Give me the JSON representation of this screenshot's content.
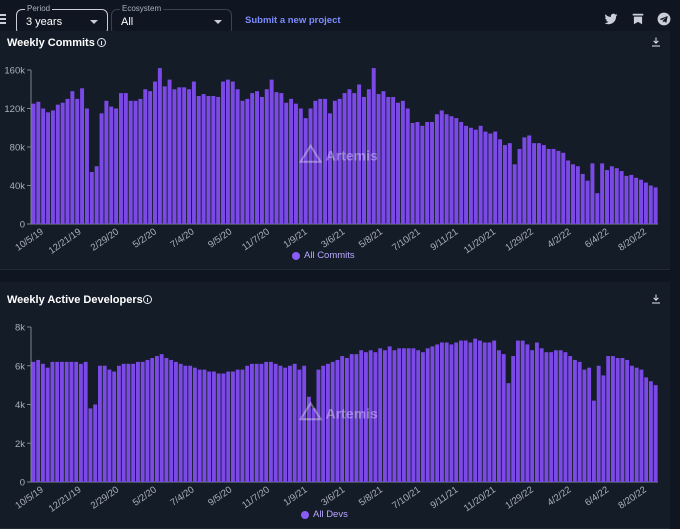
{
  "controls": {
    "period": {
      "legend": "Period",
      "value": "3 years"
    },
    "ecosystem": {
      "legend": "Ecosystem",
      "value": "All"
    },
    "submit_label": "Submit a new project"
  },
  "icons": [
    "menu-icon",
    "twitter-icon",
    "bookmarks-icon",
    "telegram-icon",
    "download-icon",
    "info-icon"
  ],
  "watermark": "Artemis",
  "colors": {
    "bar": "#7b4ae6",
    "legend_text": "#b9a8ff",
    "background": "#141c27"
  },
  "chart_data": [
    {
      "type": "bar",
      "title": "Weekly Commits",
      "legend": "All Commits",
      "x_ticks": [
        "10/5/19",
        "12/21/19",
        "2/29/20",
        "5/2/20",
        "7/4/20",
        "9/5/20",
        "11/7/20",
        "1/9/21",
        "3/6/21",
        "5/8/21",
        "7/10/21",
        "9/11/21",
        "11/20/21",
        "1/29/22",
        "4/2/22",
        "6/4/22",
        "8/20/22"
      ],
      "y_ticks": [
        "0",
        "40k",
        "80k",
        "120k",
        "160k"
      ],
      "ylim": [
        0,
        160000
      ],
      "grid": false,
      "values": [
        125000,
        127000,
        120000,
        116000,
        118000,
        124000,
        126000,
        130000,
        138000,
        130000,
        141000,
        120000,
        54000,
        60000,
        115000,
        128000,
        122000,
        120000,
        136000,
        136000,
        128000,
        128000,
        130000,
        140000,
        138000,
        148000,
        162000,
        143000,
        150000,
        140000,
        142000,
        142000,
        140000,
        148000,
        133000,
        135000,
        133000,
        133000,
        132000,
        148000,
        150000,
        148000,
        140000,
        128000,
        130000,
        136000,
        138000,
        132000,
        140000,
        150000,
        137000,
        136000,
        126000,
        130000,
        125000,
        120000,
        110000,
        120000,
        128000,
        130000,
        130000,
        115000,
        128000,
        130000,
        136000,
        140000,
        136000,
        145000,
        132000,
        140000,
        162000,
        135000,
        138000,
        132000,
        132000,
        126000,
        128000,
        120000,
        105000,
        106000,
        102000,
        106000,
        106000,
        114000,
        118000,
        114000,
        112000,
        110000,
        106000,
        102000,
        100000,
        98000,
        102000,
        96000,
        94000,
        96000,
        88000,
        82000,
        84000,
        62000,
        78000,
        90000,
        92000,
        84000,
        84000,
        82000,
        78000,
        78000,
        76000,
        74000,
        66000,
        62000,
        60000,
        52000,
        45000,
        63000,
        32000,
        63000,
        56000,
        60000,
        58000,
        55000,
        50000,
        51000,
        48000,
        46000,
        43000,
        40000,
        38000
      ]
    },
    {
      "type": "bar",
      "title": "Weekly Active Developers",
      "legend": "All Devs",
      "x_ticks": [
        "10/5/19",
        "12/21/19",
        "2/29/20",
        "5/2/20",
        "7/4/20",
        "9/5/20",
        "11/7/20",
        "1/9/21",
        "3/6/21",
        "5/8/21",
        "7/10/21",
        "9/11/21",
        "11/20/21",
        "1/29/22",
        "4/2/22",
        "6/4/22",
        "8/20/22"
      ],
      "y_ticks": [
        "0",
        "2k",
        "4k",
        "6k",
        "8k"
      ],
      "ylim": [
        0,
        8000
      ],
      "grid": false,
      "values": [
        6200,
        6300,
        6100,
        5900,
        6200,
        6200,
        6200,
        6200,
        6200,
        6200,
        6100,
        6200,
        3800,
        4000,
        6000,
        6000,
        5800,
        5700,
        6000,
        6100,
        6100,
        6100,
        6200,
        6200,
        6300,
        6400,
        6500,
        6600,
        6400,
        6300,
        6200,
        6100,
        6000,
        6000,
        5900,
        5800,
        5800,
        5700,
        5700,
        5600,
        5600,
        5700,
        5700,
        5800,
        5800,
        6000,
        6100,
        6100,
        6100,
        6200,
        6200,
        6100,
        6000,
        5900,
        6000,
        6100,
        5800,
        6000,
        4400,
        3800,
        5800,
        6000,
        6100,
        6200,
        6300,
        6500,
        6400,
        6600,
        6600,
        6800,
        6700,
        6800,
        6700,
        6900,
        6800,
        7000,
        6800,
        6900,
        6900,
        6900,
        6900,
        6800,
        6700,
        6900,
        7000,
        7100,
        7200,
        7200,
        7100,
        7200,
        7300,
        7300,
        7200,
        7400,
        7300,
        7200,
        7200,
        7300,
        6800,
        6600,
        5100,
        6500,
        7300,
        7300,
        7100,
        6800,
        7200,
        6900,
        6700,
        6700,
        6800,
        6800,
        6700,
        6500,
        6300,
        6200,
        5800,
        5900,
        4200,
        6000,
        5500,
        6500,
        6500,
        6400,
        6400,
        6300,
        6000,
        5900,
        5800,
        5400,
        5200,
        5000
      ]
    }
  ]
}
